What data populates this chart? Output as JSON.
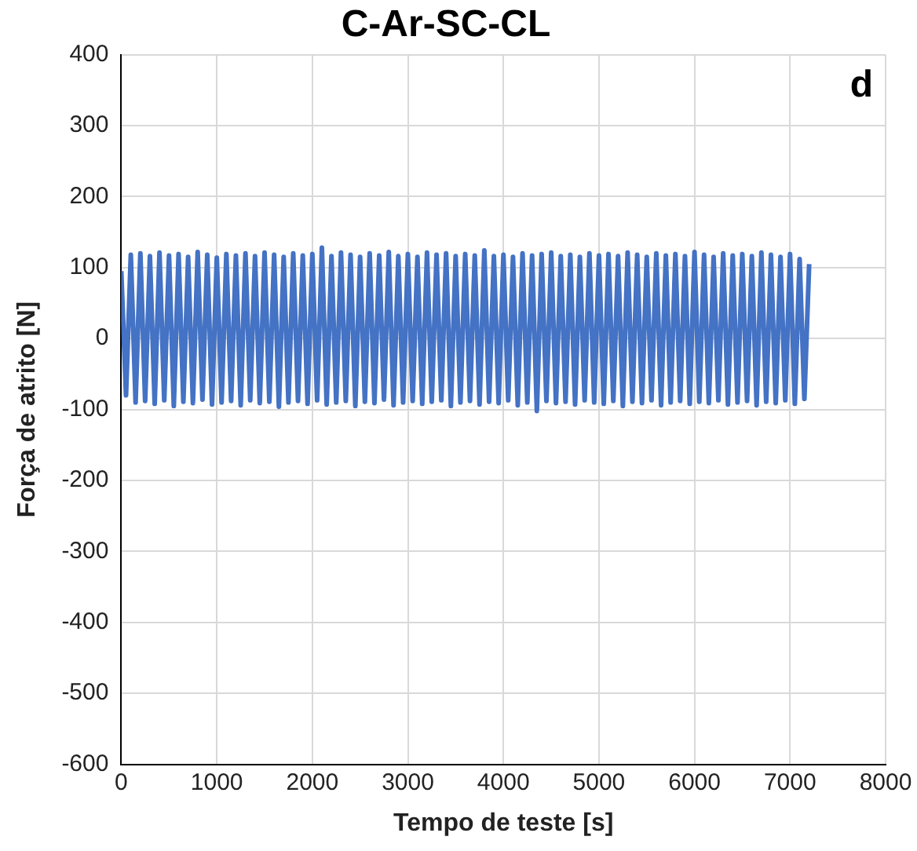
{
  "chart_data": {
    "type": "line",
    "title": "C-Ar-SC-CL",
    "xlabel": "Tempo de teste [s]",
    "ylabel": "Força de atrito [N]",
    "annotations": [
      "d"
    ],
    "x": [
      0,
      50,
      100,
      150,
      200,
      250,
      300,
      350,
      400,
      450,
      500,
      550,
      600,
      650,
      700,
      750,
      800,
      850,
      900,
      950,
      1000,
      1050,
      1100,
      1150,
      1200,
      1250,
      1300,
      1350,
      1400,
      1450,
      1500,
      1550,
      1600,
      1650,
      1700,
      1750,
      1800,
      1850,
      1900,
      1950,
      2000,
      2050,
      2100,
      2150,
      2200,
      2250,
      2300,
      2350,
      2400,
      2450,
      2500,
      2550,
      2600,
      2650,
      2700,
      2750,
      2800,
      2850,
      2900,
      2950,
      3000,
      3050,
      3100,
      3150,
      3200,
      3250,
      3300,
      3350,
      3400,
      3450,
      3500,
      3550,
      3600,
      3650,
      3700,
      3750,
      3800,
      3850,
      3900,
      3950,
      4000,
      4050,
      4100,
      4150,
      4200,
      4250,
      4300,
      4350,
      4400,
      4450,
      4500,
      4550,
      4600,
      4650,
      4700,
      4750,
      4800,
      4850,
      4900,
      4950,
      5000,
      5050,
      5100,
      5150,
      5200,
      5250,
      5300,
      5350,
      5400,
      5450,
      5500,
      5550,
      5600,
      5650,
      5700,
      5750,
      5800,
      5850,
      5900,
      5950,
      6000,
      6050,
      6100,
      6150,
      6200,
      6250,
      6300,
      6350,
      6400,
      6450,
      6500,
      6550,
      6600,
      6650,
      6700,
      6750,
      6800,
      6850,
      6900,
      6950,
      7000,
      7050,
      7100,
      7150,
      7200
    ],
    "series": [
      {
        "color": "#4472c4",
        "values": [
          95,
          -80,
          118,
          -90,
          120,
          -88,
          116,
          -92,
          121,
          -87,
          117,
          -95,
          119,
          -89,
          115,
          -91,
          122,
          -86,
          118,
          -93,
          114,
          -90,
          119,
          -88,
          117,
          -94,
          120,
          -87,
          116,
          -91,
          121,
          -89,
          118,
          -96,
          115,
          -90,
          120,
          -88,
          117,
          -92,
          119,
          -87,
          128,
          -93,
          116,
          -90,
          121,
          -88,
          118,
          -95,
          115,
          -89,
          120,
          -91,
          117,
          -86,
          122,
          -94,
          116,
          -90,
          119,
          -88,
          115,
          -92,
          121,
          -89,
          118,
          -87,
          120,
          -95,
          116,
          -90,
          119,
          -88,
          117,
          -93,
          124,
          -89,
          116,
          -91,
          118,
          -87,
          115,
          -94,
          120,
          -90,
          117,
          -102,
          119,
          -88,
          121,
          -91,
          116,
          -89,
          118,
          -93,
          115,
          -87,
          120,
          -90,
          117,
          -92,
          119,
          -88,
          116,
          -95,
          121,
          -89,
          118,
          -91,
          115,
          -87,
          120,
          -94,
          117,
          -90,
          119,
          -88,
          116,
          -92,
          122,
          -89,
          118,
          -91,
          115,
          -87,
          120,
          -93,
          117,
          -90,
          119,
          -88,
          116,
          -94,
          121,
          -89,
          118,
          -91,
          115,
          -87,
          119,
          -92,
          112,
          -85,
          105
        ]
      }
    ],
    "xlim": [
      0,
      8000
    ],
    "xticks": [
      0,
      1000,
      2000,
      3000,
      4000,
      5000,
      6000,
      7000,
      8000
    ],
    "ylim": [
      -600,
      400
    ],
    "yticks": [
      -600,
      -500,
      -400,
      -300,
      -200,
      -100,
      0,
      100,
      200,
      300,
      400
    ],
    "grid": true,
    "legend": false,
    "marker": "none",
    "line_style": "solid"
  }
}
